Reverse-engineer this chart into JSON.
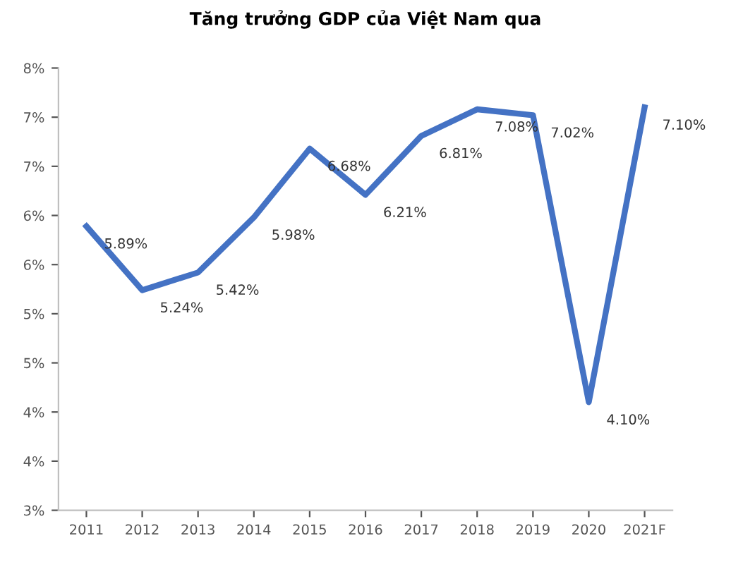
{
  "chart_data": {
    "type": "line",
    "title": "Tăng trưởng GDP của Việt Nam qua",
    "categories": [
      "2011",
      "2012",
      "2013",
      "2014",
      "2015",
      "2016",
      "2017",
      "2018",
      "2019",
      "2020",
      "2021F"
    ],
    "series": [
      {
        "color": "#4472c4",
        "values": [
          5.89,
          5.24,
          5.42,
          5.98,
          6.68,
          6.21,
          6.81,
          7.08,
          7.02,
          4.1,
          7.1
        ],
        "value_labels": [
          "5.89%",
          "5.24%",
          "5.42%",
          "5.98%",
          "6.68%",
          "6.21%",
          "6.81%",
          "7.08%",
          "7.02%",
          "4.10%",
          "7.10%"
        ]
      }
    ],
    "ylim": [
      3.0,
      7.5
    ],
    "yticks": [
      {
        "value": 3.0,
        "label": "3%"
      },
      {
        "value": 3.5,
        "label": "4%"
      },
      {
        "value": 4.0,
        "label": "4%"
      },
      {
        "value": 4.5,
        "label": "5%"
      },
      {
        "value": 5.0,
        "label": "5%"
      },
      {
        "value": 5.5,
        "label": "6%"
      },
      {
        "value": 6.0,
        "label": "6%"
      },
      {
        "value": 6.5,
        "label": "7%"
      },
      {
        "value": 7.0,
        "label": "7%"
      },
      {
        "value": 7.5,
        "label": "8%"
      }
    ],
    "grid": false,
    "marker": "none",
    "line_style": "solid"
  }
}
